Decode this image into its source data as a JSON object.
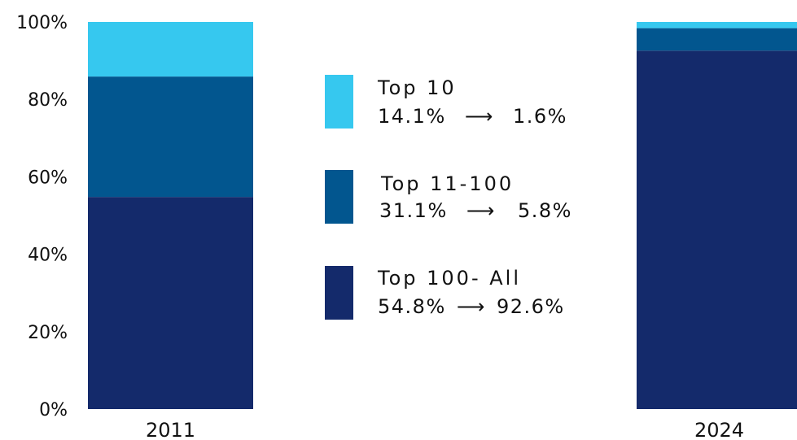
{
  "chart_data": {
    "type": "bar",
    "stacked": true,
    "categories": [
      "2011",
      "2024"
    ],
    "series": [
      {
        "name": "Top 100- All",
        "color": "#142a6b",
        "values": [
          54.8,
          92.6
        ]
      },
      {
        "name": "Top 11-100",
        "color": "#02568f",
        "values": [
          31.1,
          5.8
        ]
      },
      {
        "name": "Top 10",
        "color": "#36c8ef",
        "values": [
          14.1,
          1.6
        ]
      }
    ],
    "ylim": [
      0,
      100
    ],
    "yticks": [
      "0%",
      "20%",
      "40%",
      "60%",
      "80%",
      "100%"
    ],
    "grid": false,
    "legend": {
      "placement": "center",
      "items": [
        {
          "name": "Top 10",
          "from": "14.1%",
          "arrow": "⟶",
          "to": "1.6%"
        },
        {
          "name": "Top 11-100",
          "from": "31.1%",
          "arrow": "⟶",
          "to": "5.8%"
        },
        {
          "name": "Top 100- All",
          "from": "54.8%",
          "arrow": "⟶",
          "to": "92.6%"
        }
      ]
    }
  }
}
